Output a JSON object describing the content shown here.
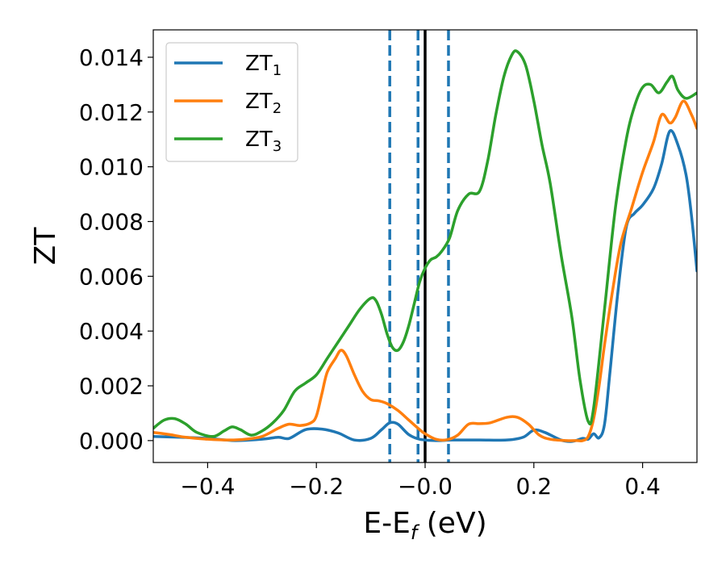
{
  "chart_data": {
    "type": "line",
    "xlabel": "E-E",
    "xlabel_sub": "f",
    "xlabel_unit": " (eV)",
    "ylabel": "ZT",
    "xlim": [
      -0.5,
      0.5
    ],
    "ylim": [
      -0.0008,
      0.015
    ],
    "xticks": [
      -0.4,
      -0.2,
      0.0,
      0.2,
      0.4
    ],
    "xtick_labels": [
      "−0.4",
      "−0.2",
      "−0.0",
      "0.2",
      "0.4"
    ],
    "yticks": [
      0.0,
      0.002,
      0.004,
      0.006,
      0.008,
      0.01,
      0.012,
      0.014
    ],
    "ytick_labels": [
      "0.000",
      "0.002",
      "0.004",
      "0.006",
      "0.008",
      "0.010",
      "0.012",
      "0.014"
    ],
    "grid": false,
    "legend_position": "top-left",
    "vlines": [
      {
        "x": 0.0,
        "color": "#000000",
        "style": "solid"
      },
      {
        "x": -0.065,
        "color": "#1f77b4",
        "style": "dashed"
      },
      {
        "x": -0.013,
        "color": "#1f77b4",
        "style": "dashed"
      },
      {
        "x": 0.043,
        "color": "#1f77b4",
        "style": "dashed"
      }
    ],
    "series": [
      {
        "name": "ZT",
        "sub": "1",
        "color": "#1f77b4",
        "points": [
          [
            -0.5,
            0.00015
          ],
          [
            -0.45,
            0.00012
          ],
          [
            -0.4,
            8e-05
          ],
          [
            -0.35,
            0.0
          ],
          [
            -0.3,
            5e-05
          ],
          [
            -0.27,
            0.00012
          ],
          [
            -0.25,
            8e-05
          ],
          [
            -0.22,
            0.0004
          ],
          [
            -0.19,
            0.00042
          ],
          [
            -0.16,
            0.00028
          ],
          [
            -0.13,
            2e-05
          ],
          [
            -0.1,
            8e-05
          ],
          [
            -0.08,
            0.0004
          ],
          [
            -0.065,
            0.00065
          ],
          [
            -0.05,
            0.0006
          ],
          [
            -0.03,
            0.00022
          ],
          [
            -0.01,
            5e-05
          ],
          [
            0.02,
            0.0
          ],
          [
            0.05,
            2e-05
          ],
          [
            0.1,
            2e-05
          ],
          [
            0.15,
            2e-05
          ],
          [
            0.18,
            0.00012
          ],
          [
            0.2,
            0.00038
          ],
          [
            0.22,
            0.0003
          ],
          [
            0.25,
            2e-05
          ],
          [
            0.27,
            -3e-05
          ],
          [
            0.29,
            8e-05
          ],
          [
            0.3,
            5e-05
          ],
          [
            0.31,
            0.00025
          ],
          [
            0.32,
            0.0001
          ],
          [
            0.33,
            0.0006
          ],
          [
            0.34,
            0.0025
          ],
          [
            0.355,
            0.0055
          ],
          [
            0.37,
            0.0078
          ],
          [
            0.385,
            0.0083
          ],
          [
            0.4,
            0.0086
          ],
          [
            0.42,
            0.0092
          ],
          [
            0.435,
            0.0101
          ],
          [
            0.45,
            0.0113
          ],
          [
            0.465,
            0.0108
          ],
          [
            0.48,
            0.0097
          ],
          [
            0.49,
            0.0082
          ],
          [
            0.5,
            0.0062
          ]
        ]
      },
      {
        "name": "ZT",
        "sub": "2",
        "color": "#ff7f0e",
        "points": [
          [
            -0.5,
            0.0003
          ],
          [
            -0.47,
            0.00022
          ],
          [
            -0.44,
            0.00012
          ],
          [
            -0.4,
            5e-05
          ],
          [
            -0.36,
            2e-05
          ],
          [
            -0.33,
            5e-05
          ],
          [
            -0.3,
            0.00015
          ],
          [
            -0.27,
            0.00045
          ],
          [
            -0.25,
            0.0006
          ],
          [
            -0.23,
            0.00055
          ],
          [
            -0.21,
            0.00065
          ],
          [
            -0.2,
            0.0009
          ],
          [
            -0.19,
            0.0017
          ],
          [
            -0.18,
            0.0025
          ],
          [
            -0.165,
            0.003
          ],
          [
            -0.155,
            0.0033
          ],
          [
            -0.145,
            0.0031
          ],
          [
            -0.13,
            0.0024
          ],
          [
            -0.115,
            0.0018
          ],
          [
            -0.1,
            0.0015
          ],
          [
            -0.085,
            0.00145
          ],
          [
            -0.07,
            0.00135
          ],
          [
            -0.05,
            0.0011
          ],
          [
            -0.03,
            0.00075
          ],
          [
            -0.01,
            0.0004
          ],
          [
            0.0,
            0.00025
          ],
          [
            0.02,
            5e-05
          ],
          [
            0.04,
            3e-05
          ],
          [
            0.06,
            0.0002
          ],
          [
            0.08,
            0.0006
          ],
          [
            0.1,
            0.00062
          ],
          [
            0.12,
            0.00065
          ],
          [
            0.15,
            0.00085
          ],
          [
            0.17,
            0.00085
          ],
          [
            0.19,
            0.0006
          ],
          [
            0.21,
            0.0002
          ],
          [
            0.23,
            5e-05
          ],
          [
            0.26,
            0.0
          ],
          [
            0.28,
            0.0
          ],
          [
            0.29,
            0.0
          ],
          [
            0.3,
            0.00015
          ],
          [
            0.31,
            0.0008
          ],
          [
            0.32,
            0.002
          ],
          [
            0.33,
            0.0035
          ],
          [
            0.345,
            0.0055
          ],
          [
            0.36,
            0.0072
          ],
          [
            0.38,
            0.0085
          ],
          [
            0.4,
            0.0098
          ],
          [
            0.42,
            0.0109
          ],
          [
            0.435,
            0.0119
          ],
          [
            0.45,
            0.0116
          ],
          [
            0.46,
            0.0118
          ],
          [
            0.475,
            0.0124
          ],
          [
            0.49,
            0.0119
          ],
          [
            0.5,
            0.0114
          ]
        ]
      },
      {
        "name": "ZT",
        "sub": "3",
        "color": "#2ca02c",
        "points": [
          [
            -0.5,
            0.00045
          ],
          [
            -0.48,
            0.00075
          ],
          [
            -0.46,
            0.0008
          ],
          [
            -0.44,
            0.0006
          ],
          [
            -0.42,
            0.0003
          ],
          [
            -0.39,
            0.00015
          ],
          [
            -0.37,
            0.00035
          ],
          [
            -0.355,
            0.0005
          ],
          [
            -0.34,
            0.0004
          ],
          [
            -0.32,
            0.0002
          ],
          [
            -0.3,
            0.00035
          ],
          [
            -0.28,
            0.00065
          ],
          [
            -0.26,
            0.0011
          ],
          [
            -0.24,
            0.0018
          ],
          [
            -0.22,
            0.0021
          ],
          [
            -0.2,
            0.0024
          ],
          [
            -0.18,
            0.003
          ],
          [
            -0.16,
            0.0036
          ],
          [
            -0.14,
            0.0042
          ],
          [
            -0.12,
            0.0048
          ],
          [
            -0.1,
            0.0052
          ],
          [
            -0.09,
            0.0051
          ],
          [
            -0.08,
            0.0046
          ],
          [
            -0.07,
            0.0039
          ],
          [
            -0.06,
            0.0034
          ],
          [
            -0.05,
            0.0033
          ],
          [
            -0.04,
            0.0036
          ],
          [
            -0.03,
            0.0042
          ],
          [
            -0.02,
            0.005
          ],
          [
            -0.01,
            0.0058
          ],
          [
            0.0,
            0.0063
          ],
          [
            0.01,
            0.0066
          ],
          [
            0.02,
            0.0067
          ],
          [
            0.03,
            0.0069
          ],
          [
            0.045,
            0.0074
          ],
          [
            0.06,
            0.0084
          ],
          [
            0.08,
            0.009
          ],
          [
            0.1,
            0.0091
          ],
          [
            0.115,
            0.0102
          ],
          [
            0.13,
            0.0119
          ],
          [
            0.145,
            0.0133
          ],
          [
            0.16,
            0.0141
          ],
          [
            0.17,
            0.0142
          ],
          [
            0.185,
            0.0137
          ],
          [
            0.2,
            0.0124
          ],
          [
            0.215,
            0.0108
          ],
          [
            0.23,
            0.0094
          ],
          [
            0.25,
            0.0068
          ],
          [
            0.27,
            0.0045
          ],
          [
            0.285,
            0.0022
          ],
          [
            0.3,
            0.0007
          ],
          [
            0.31,
            0.0012
          ],
          [
            0.33,
            0.0048
          ],
          [
            0.35,
            0.0085
          ],
          [
            0.37,
            0.011
          ],
          [
            0.385,
            0.0122
          ],
          [
            0.4,
            0.0129
          ],
          [
            0.415,
            0.013
          ],
          [
            0.43,
            0.0127
          ],
          [
            0.445,
            0.0131
          ],
          [
            0.455,
            0.0133
          ],
          [
            0.465,
            0.0128
          ],
          [
            0.48,
            0.0125
          ],
          [
            0.5,
            0.0127
          ]
        ]
      }
    ]
  }
}
